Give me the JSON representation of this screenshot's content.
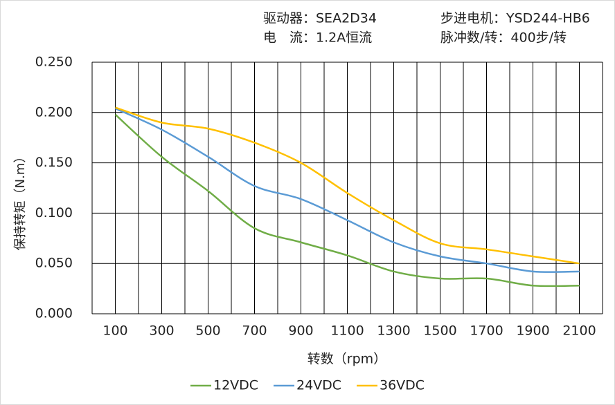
{
  "chart_data": {
    "type": "line",
    "info": [
      "驱动器：SEA2D34",
      "步进电机：YSD244-HB6",
      "电　流：1.2A恒流",
      "脉冲数/转：400步/转"
    ],
    "xlabel": "转数（rpm）",
    "ylabel": "保持转矩（N.m）",
    "x": [
      100,
      300,
      500,
      700,
      900,
      1100,
      1300,
      1500,
      1700,
      1900,
      2100
    ],
    "xlim": [
      0,
      2200
    ],
    "xticks": [
      100,
      300,
      500,
      700,
      900,
      1100,
      1300,
      1500,
      1700,
      1900,
      2100
    ],
    "xgrid": [
      0,
      100,
      200,
      300,
      400,
      500,
      600,
      700,
      800,
      900,
      1000,
      1100,
      1200,
      1300,
      1400,
      1500,
      1600,
      1700,
      1800,
      1900,
      2000,
      2100,
      2200
    ],
    "ylim": [
      0,
      0.25
    ],
    "yticks": [
      {
        "value": 0,
        "label": "0.000"
      },
      {
        "value": 0.05,
        "label": "0.050"
      },
      {
        "value": 0.1,
        "label": "0.100"
      },
      {
        "value": 0.15,
        "label": "0.150"
      },
      {
        "value": 0.2,
        "label": "0.200"
      },
      {
        "value": 0.25,
        "label": "0.250"
      }
    ],
    "grid": true,
    "series": [
      {
        "name": "12VDC",
        "color": "#70ad47",
        "values": [
          0.198,
          0.156,
          0.122,
          0.085,
          0.071,
          0.058,
          0.042,
          0.035,
          0.035,
          0.028,
          0.028
        ]
      },
      {
        "name": "24VDC",
        "color": "#5b9bd5",
        "values": [
          0.204,
          0.183,
          0.156,
          0.127,
          0.114,
          0.093,
          0.071,
          0.057,
          0.05,
          0.042,
          0.042
        ]
      },
      {
        "name": "36VDC",
        "color": "#ffc000",
        "values": [
          0.205,
          0.19,
          0.184,
          0.17,
          0.15,
          0.12,
          0.093,
          0.07,
          0.064,
          0.057,
          0.05
        ]
      }
    ]
  }
}
